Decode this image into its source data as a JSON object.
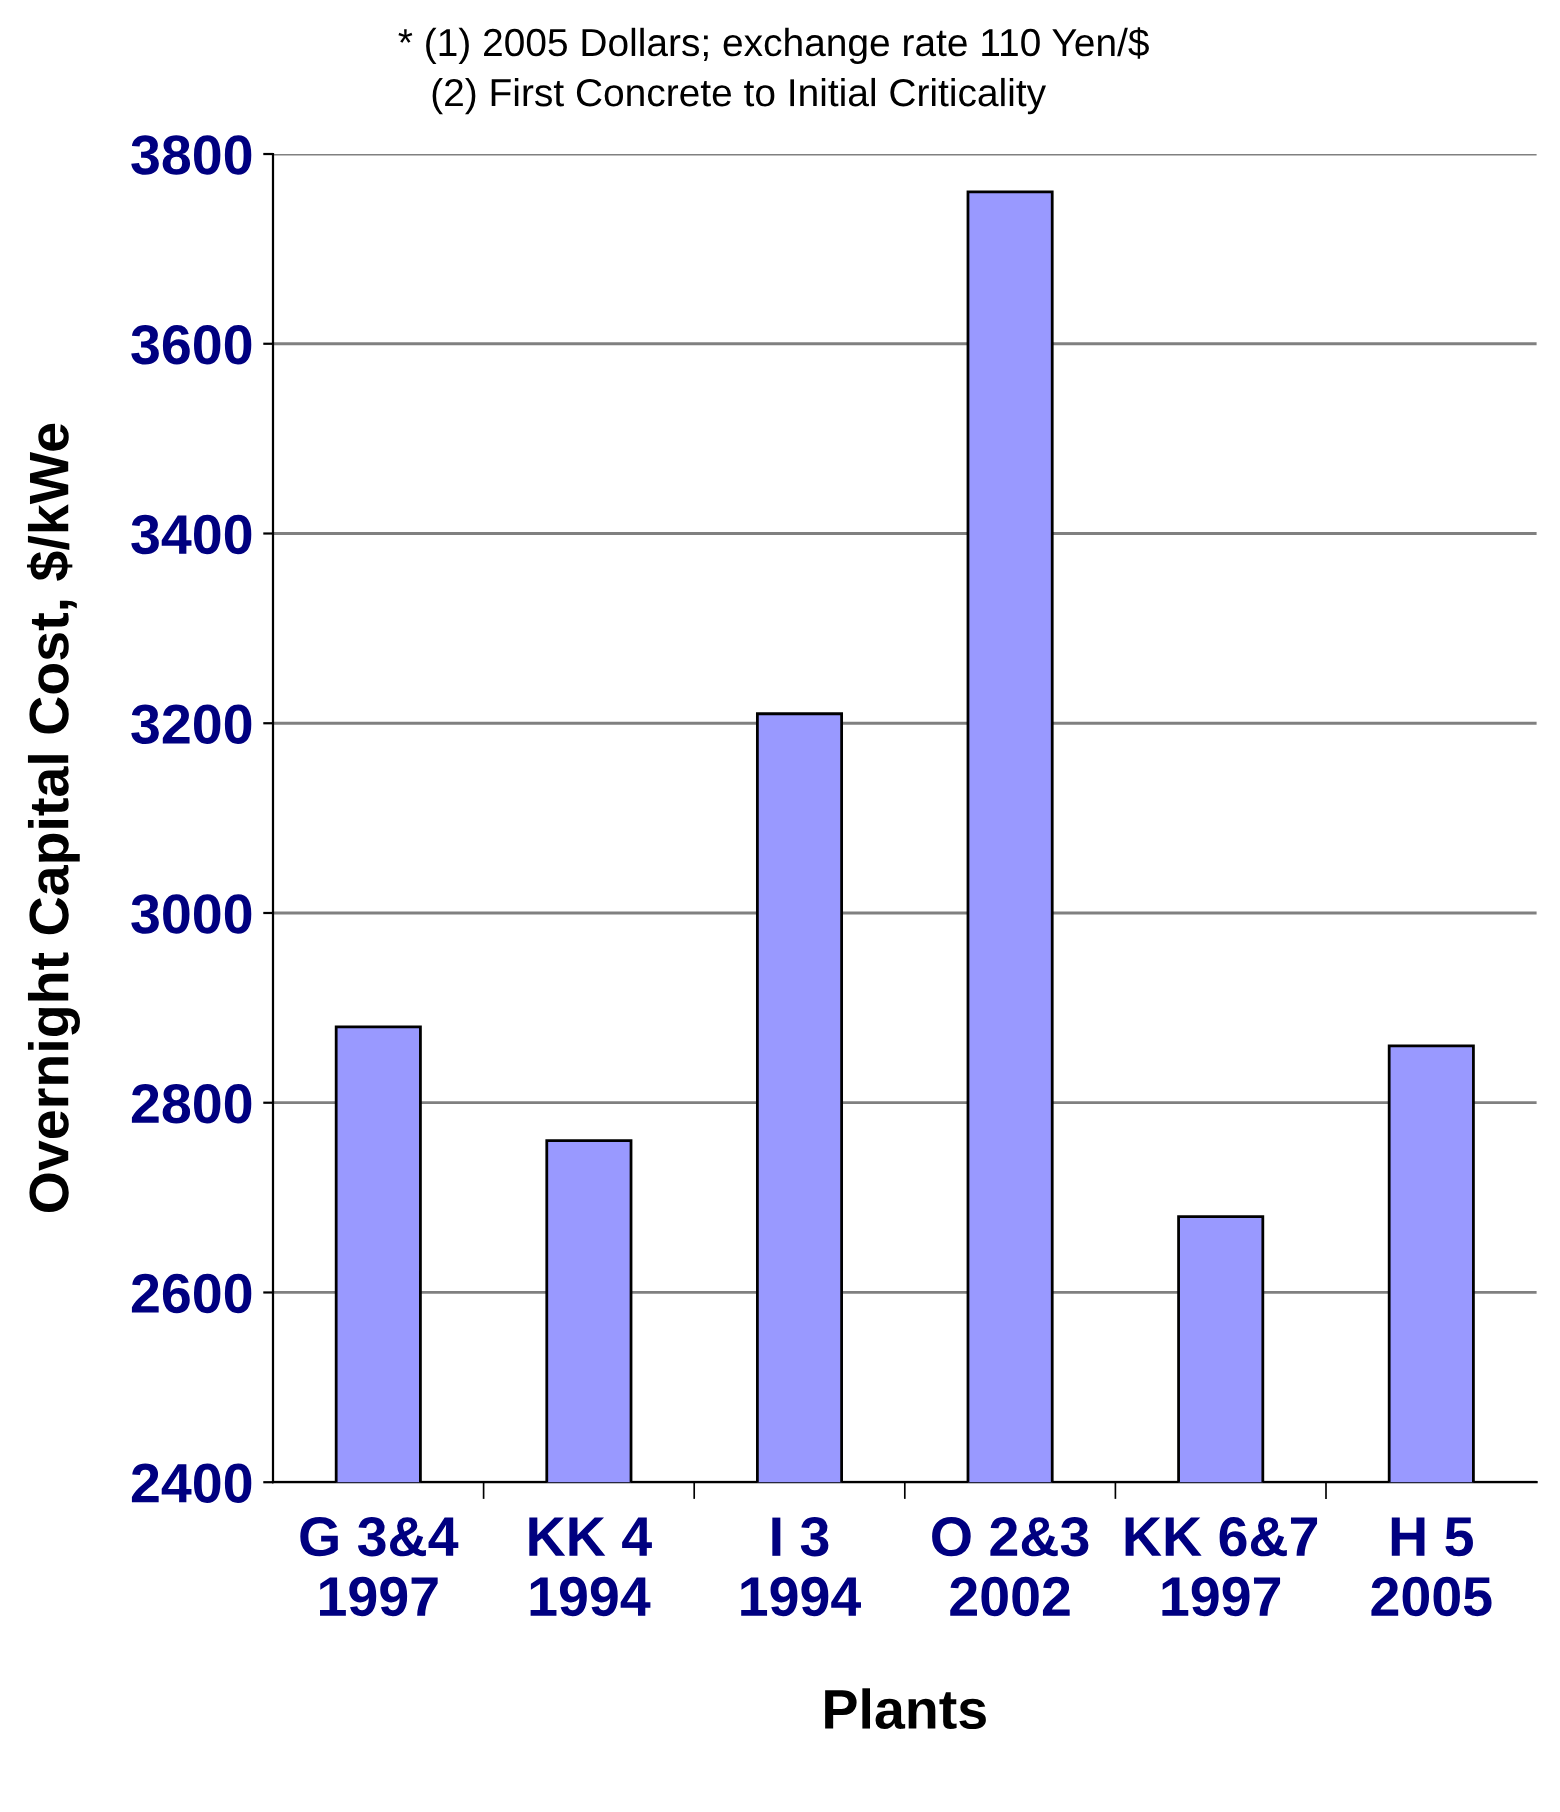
{
  "chart_data": {
    "type": "bar",
    "xlabel": "Plants",
    "ylabel": "Overnight Capital Cost, $/kWe",
    "annotations": [
      "* (1) 2005 Dollars; exchange rate 110 Yen/$",
      "   (2) First Concrete to Initial Criticality"
    ],
    "categories": [
      "G 3&4\n1997",
      "KK 4\n1994",
      "I 3\n1994",
      "O 2&3\n2002",
      "KK 6&7\n1997",
      "H 5\n2005"
    ],
    "values": [
      2880,
      2760,
      3210,
      3760,
      2680,
      2860
    ],
    "color": "#9999ff",
    "ylim": [
      2400,
      3800
    ],
    "yticks": [
      2400,
      2600,
      2800,
      3000,
      3200,
      3400,
      3600,
      3800
    ],
    "grid": "y"
  }
}
